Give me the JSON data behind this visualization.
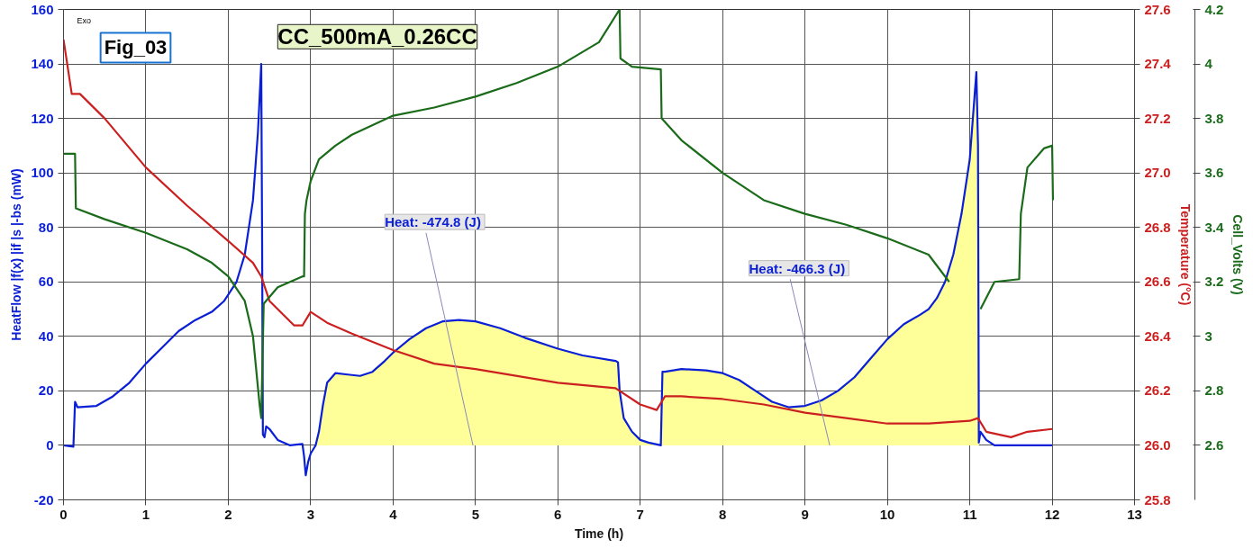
{
  "chart_data": {
    "type": "line",
    "title": "CC_500mA_0.26CC",
    "xlabel": "Time (h)",
    "ylabel": "HeatFlow |f(x) |if |s |-bs (mW)",
    "y2label": "Temperature (°C)",
    "y3label": "Cell_Volts (V)",
    "annotations": [
      "Fig_03",
      "Exo",
      {
        "text": "Heat:  -474.8 (J)",
        "x": 4.97,
        "y": 0
      },
      {
        "text": "Heat:  -466.3 (J)",
        "x": 9.3,
        "y": 0
      }
    ],
    "xlim": [
      0,
      13
    ],
    "xticks": [
      0,
      1,
      2,
      3,
      4,
      5,
      6,
      7,
      8,
      9,
      10,
      11,
      12,
      13
    ],
    "ylim": [
      -20,
      160
    ],
    "yticks": [
      -20,
      0,
      20,
      40,
      60,
      80,
      100,
      120,
      140,
      160
    ],
    "y2lim": [
      25.8,
      27.6
    ],
    "y2ticks": [
      25.8,
      {
        "value": 26.0,
        "label": "26.0"
      },
      26.2,
      26.4,
      26.6,
      26.8,
      {
        "value": 27.0,
        "label": "27.0"
      },
      27.2,
      27.4,
      27.6
    ],
    "y3lim": [
      2.4,
      4.2
    ],
    "y3ticks": [
      2.6,
      2.8,
      3,
      3.2,
      3.4,
      3.6,
      3.8,
      4,
      4.2
    ],
    "grid": true,
    "series": [
      {
        "type": "area",
        "color": "#ffff99",
        "axis": "y",
        "x": [
          3.06,
          3.1,
          3.15,
          3.2,
          3.3,
          3.45,
          3.6,
          3.75,
          3.9,
          4.0,
          4.2,
          4.4,
          4.6,
          4.8,
          5.0,
          5.3,
          5.6,
          6.0,
          6.3,
          6.7,
          6.73,
          6.75,
          6.8,
          6.9,
          7.0,
          7.1,
          7.25,
          7.27,
          7.3,
          7.5,
          7.8,
          8.0,
          8.2,
          8.4,
          8.6,
          8.8,
          9.0,
          9.2,
          9.4,
          9.6,
          9.8,
          10.0,
          10.2,
          10.4,
          10.5,
          10.6,
          10.7,
          10.8,
          10.9,
          11.0,
          11.05,
          11.08,
          11.1,
          11.11
        ],
        "values": [
          0,
          5,
          15,
          23,
          26.5,
          26,
          25.5,
          27,
          31,
          34,
          39,
          43,
          45.5,
          46,
          45.5,
          43,
          39.5,
          35.5,
          33,
          31,
          30.5,
          20,
          10,
          5,
          2,
          1,
          0,
          27,
          27,
          28,
          27.5,
          26.5,
          24,
          20,
          16,
          14,
          14.5,
          16.5,
          20,
          25,
          32,
          39,
          44.5,
          48,
          50,
          54,
          60,
          70,
          85,
          105,
          125,
          137,
          110,
          1
        ]
      },
      {
        "color": "#0a1fd6",
        "axis": "y",
        "x": [
          0,
          0.12,
          0.14,
          0.17,
          0.4,
          0.6,
          0.8,
          1.0,
          1.2,
          1.4,
          1.6,
          1.8,
          1.95,
          2.1,
          2.2,
          2.3,
          2.36,
          2.4,
          2.41,
          2.42,
          2.44,
          2.46,
          2.5,
          2.6,
          2.75,
          2.9,
          2.92,
          2.94,
          2.97,
          3.0,
          3.06,
          3.1,
          3.15,
          3.2,
          3.3,
          3.45,
          3.6,
          3.75,
          3.9,
          4.0,
          4.2,
          4.4,
          4.6,
          4.8,
          5.0,
          5.3,
          5.6,
          6.0,
          6.3,
          6.7,
          6.73,
          6.75,
          6.8,
          6.9,
          7.0,
          7.1,
          7.25,
          7.27,
          7.3,
          7.5,
          7.8,
          8.0,
          8.2,
          8.4,
          8.6,
          8.8,
          9.0,
          9.2,
          9.4,
          9.6,
          9.8,
          10.0,
          10.2,
          10.4,
          10.5,
          10.6,
          10.7,
          10.8,
          10.9,
          11.0,
          11.05,
          11.08,
          11.1,
          11.11,
          11.13,
          11.2,
          11.3,
          11.6,
          12.0
        ],
        "values": [
          0,
          -0.5,
          16,
          14,
          14.5,
          18,
          23,
          30,
          36,
          42,
          46,
          49,
          53,
          60,
          70,
          90,
          115,
          140,
          80,
          4,
          3,
          7,
          6,
          2,
          0,
          0.5,
          -4,
          -11,
          -6,
          -3,
          0,
          5,
          15,
          23,
          26.5,
          26,
          25.5,
          27,
          31,
          34,
          39,
          43,
          45.5,
          46,
          45.5,
          43,
          39.5,
          35.5,
          33,
          31,
          30.5,
          20,
          10,
          5,
          2,
          1,
          0,
          27,
          27,
          28,
          27.5,
          26.5,
          24,
          20,
          16,
          14,
          14.5,
          16.5,
          20,
          25,
          32,
          39,
          44.5,
          48,
          50,
          54,
          60,
          70,
          85,
          105,
          125,
          137,
          110,
          1,
          5,
          2,
          0,
          0,
          0
        ]
      },
      {
        "color": "#cc2020",
        "axis": "y2",
        "x": [
          0,
          0.1,
          0.2,
          0.5,
          1.0,
          1.5,
          2.0,
          2.3,
          2.4,
          2.5,
          2.8,
          2.9,
          3.0,
          3.2,
          3.5,
          4.0,
          4.5,
          5.0,
          6.0,
          6.7,
          7.0,
          7.2,
          7.3,
          7.5,
          8.0,
          8.5,
          9.0,
          9.5,
          10.0,
          10.5,
          11.0,
          11.1,
          11.2,
          11.5,
          11.7,
          12.0
        ],
        "values": [
          27.49,
          27.29,
          27.29,
          27.2,
          27.02,
          26.88,
          26.75,
          26.67,
          26.62,
          26.53,
          26.44,
          26.44,
          26.49,
          26.45,
          26.41,
          26.35,
          26.3,
          26.28,
          26.23,
          26.21,
          26.15,
          26.13,
          26.18,
          26.18,
          26.17,
          26.15,
          26.12,
          26.1,
          26.08,
          26.08,
          26.09,
          26.1,
          26.05,
          26.03,
          26.05,
          26.06
        ]
      },
      {
        "color": "#1a6b1a",
        "axis": "y3",
        "x": [
          0,
          0.14,
          0.15,
          0.5,
          1.0,
          1.5,
          1.8,
          2.0,
          2.2,
          2.3,
          2.38,
          2.4,
          2.43,
          2.6,
          2.9,
          2.92,
          2.93,
          2.95,
          3.0,
          3.1,
          3.3,
          3.5,
          4.0,
          4.5,
          5.0,
          5.5,
          6.0,
          6.5,
          6.75,
          6.76,
          6.9,
          7.25,
          7.26,
          7.5,
          8.0,
          8.5,
          9.0,
          9.5,
          10.0,
          10.5,
          10.75,
          11.0,
          11.13,
          11.3,
          11.6,
          11.62,
          11.7,
          11.9,
          12.0,
          12.01
        ],
        "values": [
          3.67,
          3.67,
          3.47,
          3.43,
          3.38,
          3.32,
          3.27,
          3.22,
          3.13,
          3.0,
          2.75,
          2.7,
          3.12,
          3.18,
          3.22,
          3.22,
          3.45,
          3.5,
          3.57,
          3.65,
          3.7,
          3.74,
          3.81,
          3.84,
          3.88,
          3.93,
          3.99,
          4.08,
          4.2,
          4.02,
          3.99,
          3.98,
          3.8,
          3.72,
          3.6,
          3.5,
          3.45,
          3.41,
          3.36,
          3.3,
          3.2,
          null,
          3.1,
          3.2,
          3.21,
          3.45,
          3.62,
          3.69,
          3.7,
          3.5
        ]
      }
    ]
  }
}
